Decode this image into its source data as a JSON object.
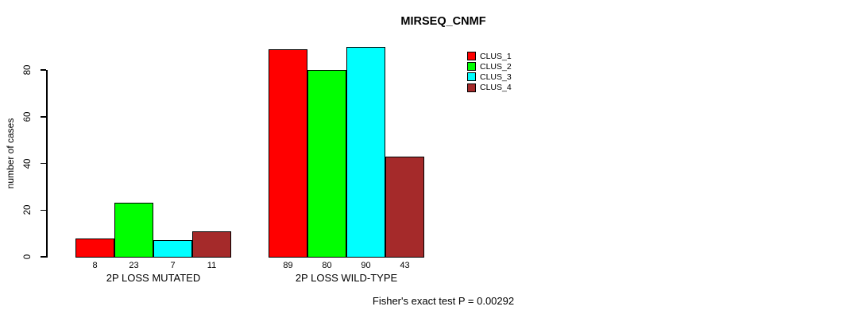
{
  "chart_data": {
    "type": "bar",
    "title": "MIRSEQ_CNMF",
    "ylabel": "number of cases",
    "ylim": [
      0,
      80
    ],
    "yticks": [
      0,
      20,
      40,
      60,
      80
    ],
    "grid": false,
    "legend_position": "right-inside-top",
    "categories": [
      "2P LOSS MUTATED",
      "2P LOSS WILD-TYPE"
    ],
    "series": [
      {
        "name": "CLUS_1",
        "color": "#FF0000",
        "values": [
          8,
          89
        ]
      },
      {
        "name": "CLUS_2",
        "color": "#00FF00",
        "values": [
          23,
          80
        ]
      },
      {
        "name": "CLUS_3",
        "color": "#00FFFF",
        "values": [
          7,
          90
        ]
      },
      {
        "name": "CLUS_4",
        "color": "#A52A2A",
        "values": [
          11,
          43
        ]
      }
    ],
    "bar_value_labels": {
      "2P LOSS MUTATED": [
        8,
        23,
        7,
        11
      ],
      "2P LOSS WILD-TYPE": [
        89,
        80,
        90,
        43
      ]
    },
    "footer": "Fisher's exact test P = 0.00292",
    "colors": {
      "background": "#FFFFFF",
      "axis": "#000000",
      "text": "#000000"
    }
  }
}
